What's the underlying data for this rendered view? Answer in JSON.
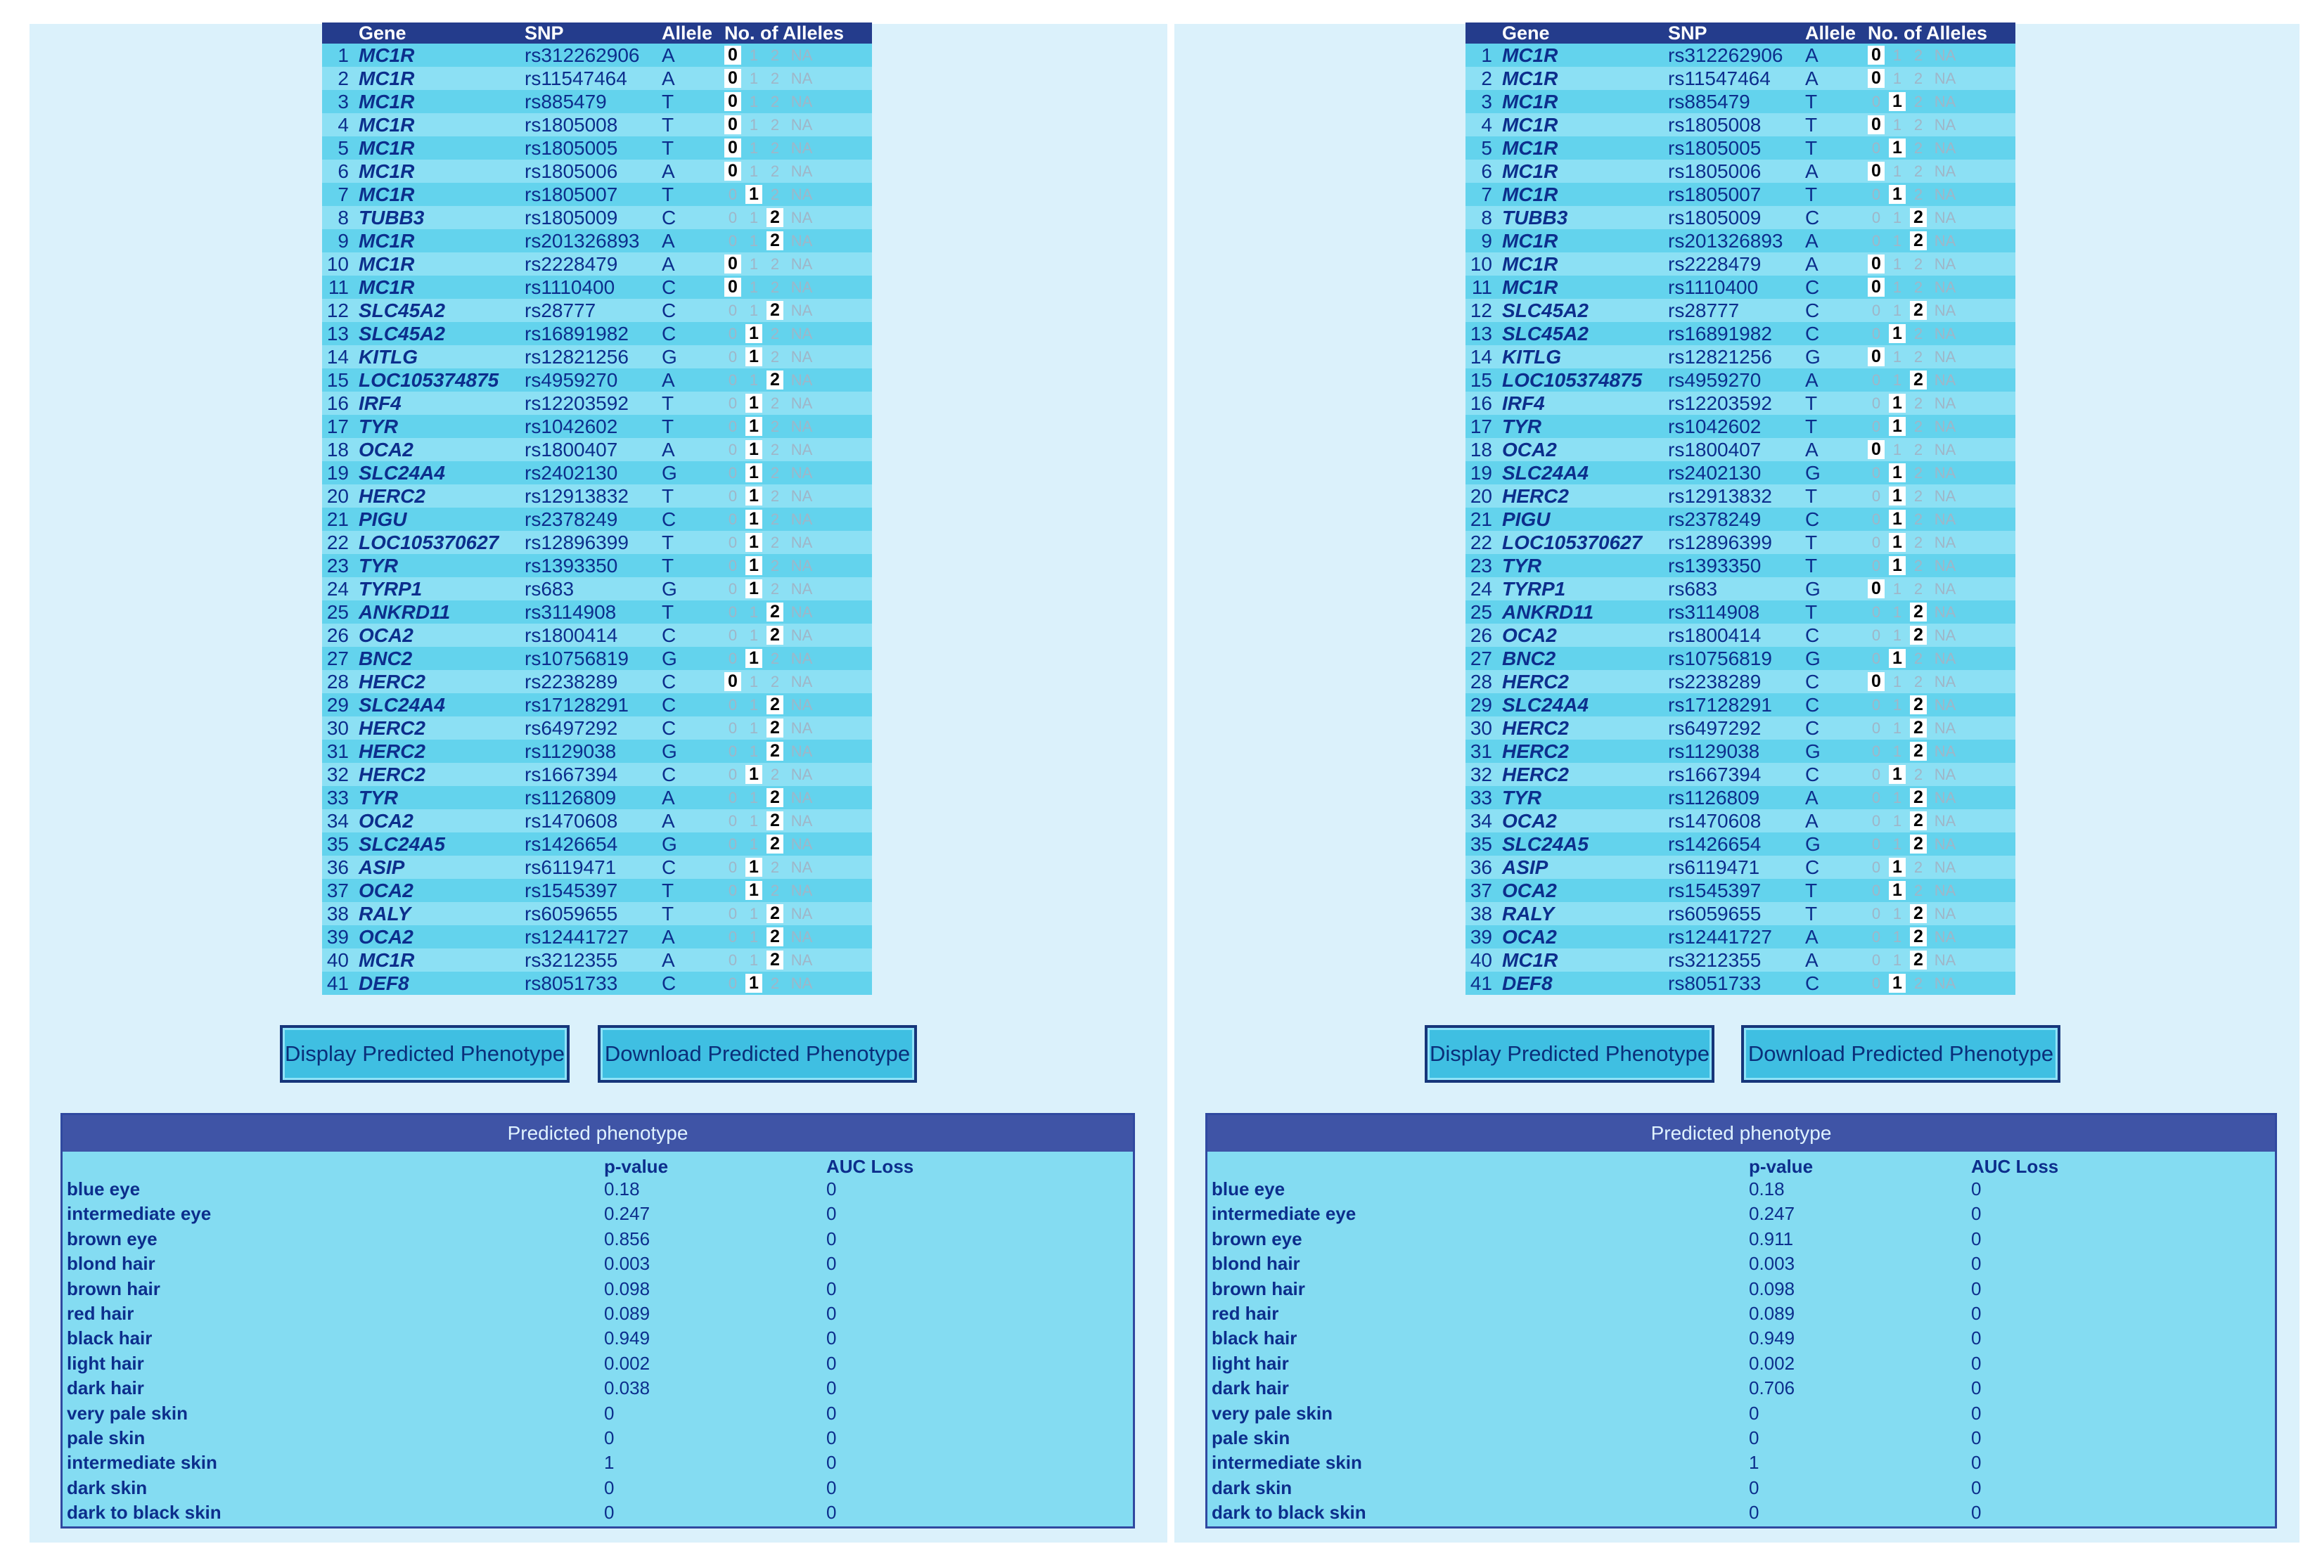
{
  "columns": {
    "gene": "Gene",
    "snp": "SNP",
    "allele": "Allele",
    "count": "No. of Alleles"
  },
  "allele_options": [
    "0",
    "1",
    "2",
    "NA"
  ],
  "snps": [
    {
      "n": "1",
      "gene": "MC1R",
      "snp": "rs312262906",
      "allele": "A"
    },
    {
      "n": "2",
      "gene": "MC1R",
      "snp": "rs11547464",
      "allele": "A"
    },
    {
      "n": "3",
      "gene": "MC1R",
      "snp": "rs885479",
      "allele": "T"
    },
    {
      "n": "4",
      "gene": "MC1R",
      "snp": "rs1805008",
      "allele": "T"
    },
    {
      "n": "5",
      "gene": "MC1R",
      "snp": "rs1805005",
      "allele": "T"
    },
    {
      "n": "6",
      "gene": "MC1R",
      "snp": "rs1805006",
      "allele": "A"
    },
    {
      "n": "7",
      "gene": "MC1R",
      "snp": "rs1805007",
      "allele": "T"
    },
    {
      "n": "8",
      "gene": "TUBB3",
      "snp": "rs1805009",
      "allele": "C"
    },
    {
      "n": "9",
      "gene": "MC1R",
      "snp": "rs201326893",
      "allele": "A"
    },
    {
      "n": "10",
      "gene": "MC1R",
      "snp": "rs2228479",
      "allele": "A"
    },
    {
      "n": "11",
      "gene": "MC1R",
      "snp": "rs1110400",
      "allele": "C"
    },
    {
      "n": "12",
      "gene": "SLC45A2",
      "snp": "rs28777",
      "allele": "C"
    },
    {
      "n": "13",
      "gene": "SLC45A2",
      "snp": "rs16891982",
      "allele": "C"
    },
    {
      "n": "14",
      "gene": "KITLG",
      "snp": "rs12821256",
      "allele": "G"
    },
    {
      "n": "15",
      "gene": "LOC105374875",
      "snp": "rs4959270",
      "allele": "A"
    },
    {
      "n": "16",
      "gene": "IRF4",
      "snp": "rs12203592",
      "allele": "T"
    },
    {
      "n": "17",
      "gene": "TYR",
      "snp": "rs1042602",
      "allele": "T"
    },
    {
      "n": "18",
      "gene": "OCA2",
      "snp": "rs1800407",
      "allele": "A"
    },
    {
      "n": "19",
      "gene": "SLC24A4",
      "snp": "rs2402130",
      "allele": "G"
    },
    {
      "n": "20",
      "gene": "HERC2",
      "snp": "rs12913832",
      "allele": "T"
    },
    {
      "n": "21",
      "gene": "PIGU",
      "snp": "rs2378249",
      "allele": "C"
    },
    {
      "n": "22",
      "gene": "LOC105370627",
      "snp": "rs12896399",
      "allele": "T"
    },
    {
      "n": "23",
      "gene": "TYR",
      "snp": "rs1393350",
      "allele": "T"
    },
    {
      "n": "24",
      "gene": "TYRP1",
      "snp": "rs683",
      "allele": "G"
    },
    {
      "n": "25",
      "gene": "ANKRD11",
      "snp": "rs3114908",
      "allele": "T"
    },
    {
      "n": "26",
      "gene": "OCA2",
      "snp": "rs1800414",
      "allele": "C"
    },
    {
      "n": "27",
      "gene": "BNC2",
      "snp": "rs10756819",
      "allele": "G"
    },
    {
      "n": "28",
      "gene": "HERC2",
      "snp": "rs2238289",
      "allele": "C"
    },
    {
      "n": "29",
      "gene": "SLC24A4",
      "snp": "rs17128291",
      "allele": "C"
    },
    {
      "n": "30",
      "gene": "HERC2",
      "snp": "rs6497292",
      "allele": "C"
    },
    {
      "n": "31",
      "gene": "HERC2",
      "snp": "rs1129038",
      "allele": "G"
    },
    {
      "n": "32",
      "gene": "HERC2",
      "snp": "rs1667394",
      "allele": "C"
    },
    {
      "n": "33",
      "gene": "TYR",
      "snp": "rs1126809",
      "allele": "A"
    },
    {
      "n": "34",
      "gene": "OCA2",
      "snp": "rs1470608",
      "allele": "A"
    },
    {
      "n": "35",
      "gene": "SLC24A5",
      "snp": "rs1426654",
      "allele": "G"
    },
    {
      "n": "36",
      "gene": "ASIP",
      "snp": "rs6119471",
      "allele": "C"
    },
    {
      "n": "37",
      "gene": "OCA2",
      "snp": "rs1545397",
      "allele": "T"
    },
    {
      "n": "38",
      "gene": "RALY",
      "snp": "rs6059655",
      "allele": "T"
    },
    {
      "n": "39",
      "gene": "OCA2",
      "snp": "rs12441727",
      "allele": "A"
    },
    {
      "n": "40",
      "gene": "MC1R",
      "snp": "rs3212355",
      "allele": "A"
    },
    {
      "n": "41",
      "gene": "DEF8",
      "snp": "rs8051733",
      "allele": "C"
    }
  ],
  "left": {
    "selected": [
      "0",
      "0",
      "0",
      "0",
      "0",
      "0",
      "1",
      "2",
      "2",
      "0",
      "0",
      "2",
      "1",
      "1",
      "2",
      "1",
      "1",
      "1",
      "1",
      "1",
      "1",
      "1",
      "1",
      "1",
      "2",
      "2",
      "1",
      "0",
      "2",
      "2",
      "2",
      "1",
      "2",
      "2",
      "2",
      "1",
      "1",
      "2",
      "2",
      "2",
      "1"
    ],
    "buttons": {
      "display": "Display Predicted Phenotype",
      "download": "Download Predicted Phenotype"
    },
    "phenotype": {
      "title": "Predicted phenotype",
      "col_p": "p-value",
      "col_auc": "AUC Loss",
      "rows": [
        {
          "name": "blue eye",
          "p": "0.18",
          "auc": "0"
        },
        {
          "name": "intermediate eye",
          "p": "0.247",
          "auc": "0"
        },
        {
          "name": "brown eye",
          "p": "0.856",
          "auc": "0"
        },
        {
          "name": "blond hair",
          "p": "0.003",
          "auc": "0"
        },
        {
          "name": "brown hair",
          "p": "0.098",
          "auc": "0"
        },
        {
          "name": "red hair",
          "p": "0.089",
          "auc": "0"
        },
        {
          "name": "black hair",
          "p": "0.949",
          "auc": "0"
        },
        {
          "name": "light hair",
          "p": "0.002",
          "auc": "0"
        },
        {
          "name": "dark hair",
          "p": "0.038",
          "auc": "0"
        },
        {
          "name": "very pale skin",
          "p": "0",
          "auc": "0"
        },
        {
          "name": "pale skin",
          "p": "0",
          "auc": "0"
        },
        {
          "name": "intermediate skin",
          "p": "1",
          "auc": "0"
        },
        {
          "name": "dark skin",
          "p": "0",
          "auc": "0"
        },
        {
          "name": "dark to black skin",
          "p": "0",
          "auc": "0"
        }
      ]
    }
  },
  "right": {
    "selected": [
      "0",
      "0",
      "1",
      "0",
      "1",
      "0",
      "1",
      "2",
      "2",
      "0",
      "0",
      "2",
      "1",
      "0",
      "2",
      "1",
      "1",
      "0",
      "1",
      "1",
      "1",
      "1",
      "1",
      "0",
      "2",
      "2",
      "1",
      "0",
      "2",
      "2",
      "2",
      "1",
      "2",
      "2",
      "2",
      "1",
      "1",
      "2",
      "2",
      "2",
      "1"
    ],
    "buttons": {
      "display": "Display Predicted Phenotype",
      "download": "Download Predicted Phenotype"
    },
    "phenotype": {
      "title": "Predicted phenotype",
      "col_p": "p-value",
      "col_auc": "AUC Loss",
      "rows": [
        {
          "name": "blue eye",
          "p": "0.18",
          "auc": "0"
        },
        {
          "name": "intermediate eye",
          "p": "0.247",
          "auc": "0"
        },
        {
          "name": "brown eye",
          "p": "0.911",
          "auc": "0"
        },
        {
          "name": "blond hair",
          "p": "0.003",
          "auc": "0"
        },
        {
          "name": "brown hair",
          "p": "0.098",
          "auc": "0"
        },
        {
          "name": "red hair",
          "p": "0.089",
          "auc": "0"
        },
        {
          "name": "black hair",
          "p": "0.949",
          "auc": "0"
        },
        {
          "name": "light hair",
          "p": "0.002",
          "auc": "0"
        },
        {
          "name": "dark hair",
          "p": "0.706",
          "auc": "0"
        },
        {
          "name": "very pale skin",
          "p": "0",
          "auc": "0"
        },
        {
          "name": "pale skin",
          "p": "0",
          "auc": "0"
        },
        {
          "name": "intermediate skin",
          "p": "1",
          "auc": "0"
        },
        {
          "name": "dark skin",
          "p": "0",
          "auc": "0"
        },
        {
          "name": "dark to black skin",
          "p": "0",
          "auc": "0"
        }
      ]
    }
  }
}
